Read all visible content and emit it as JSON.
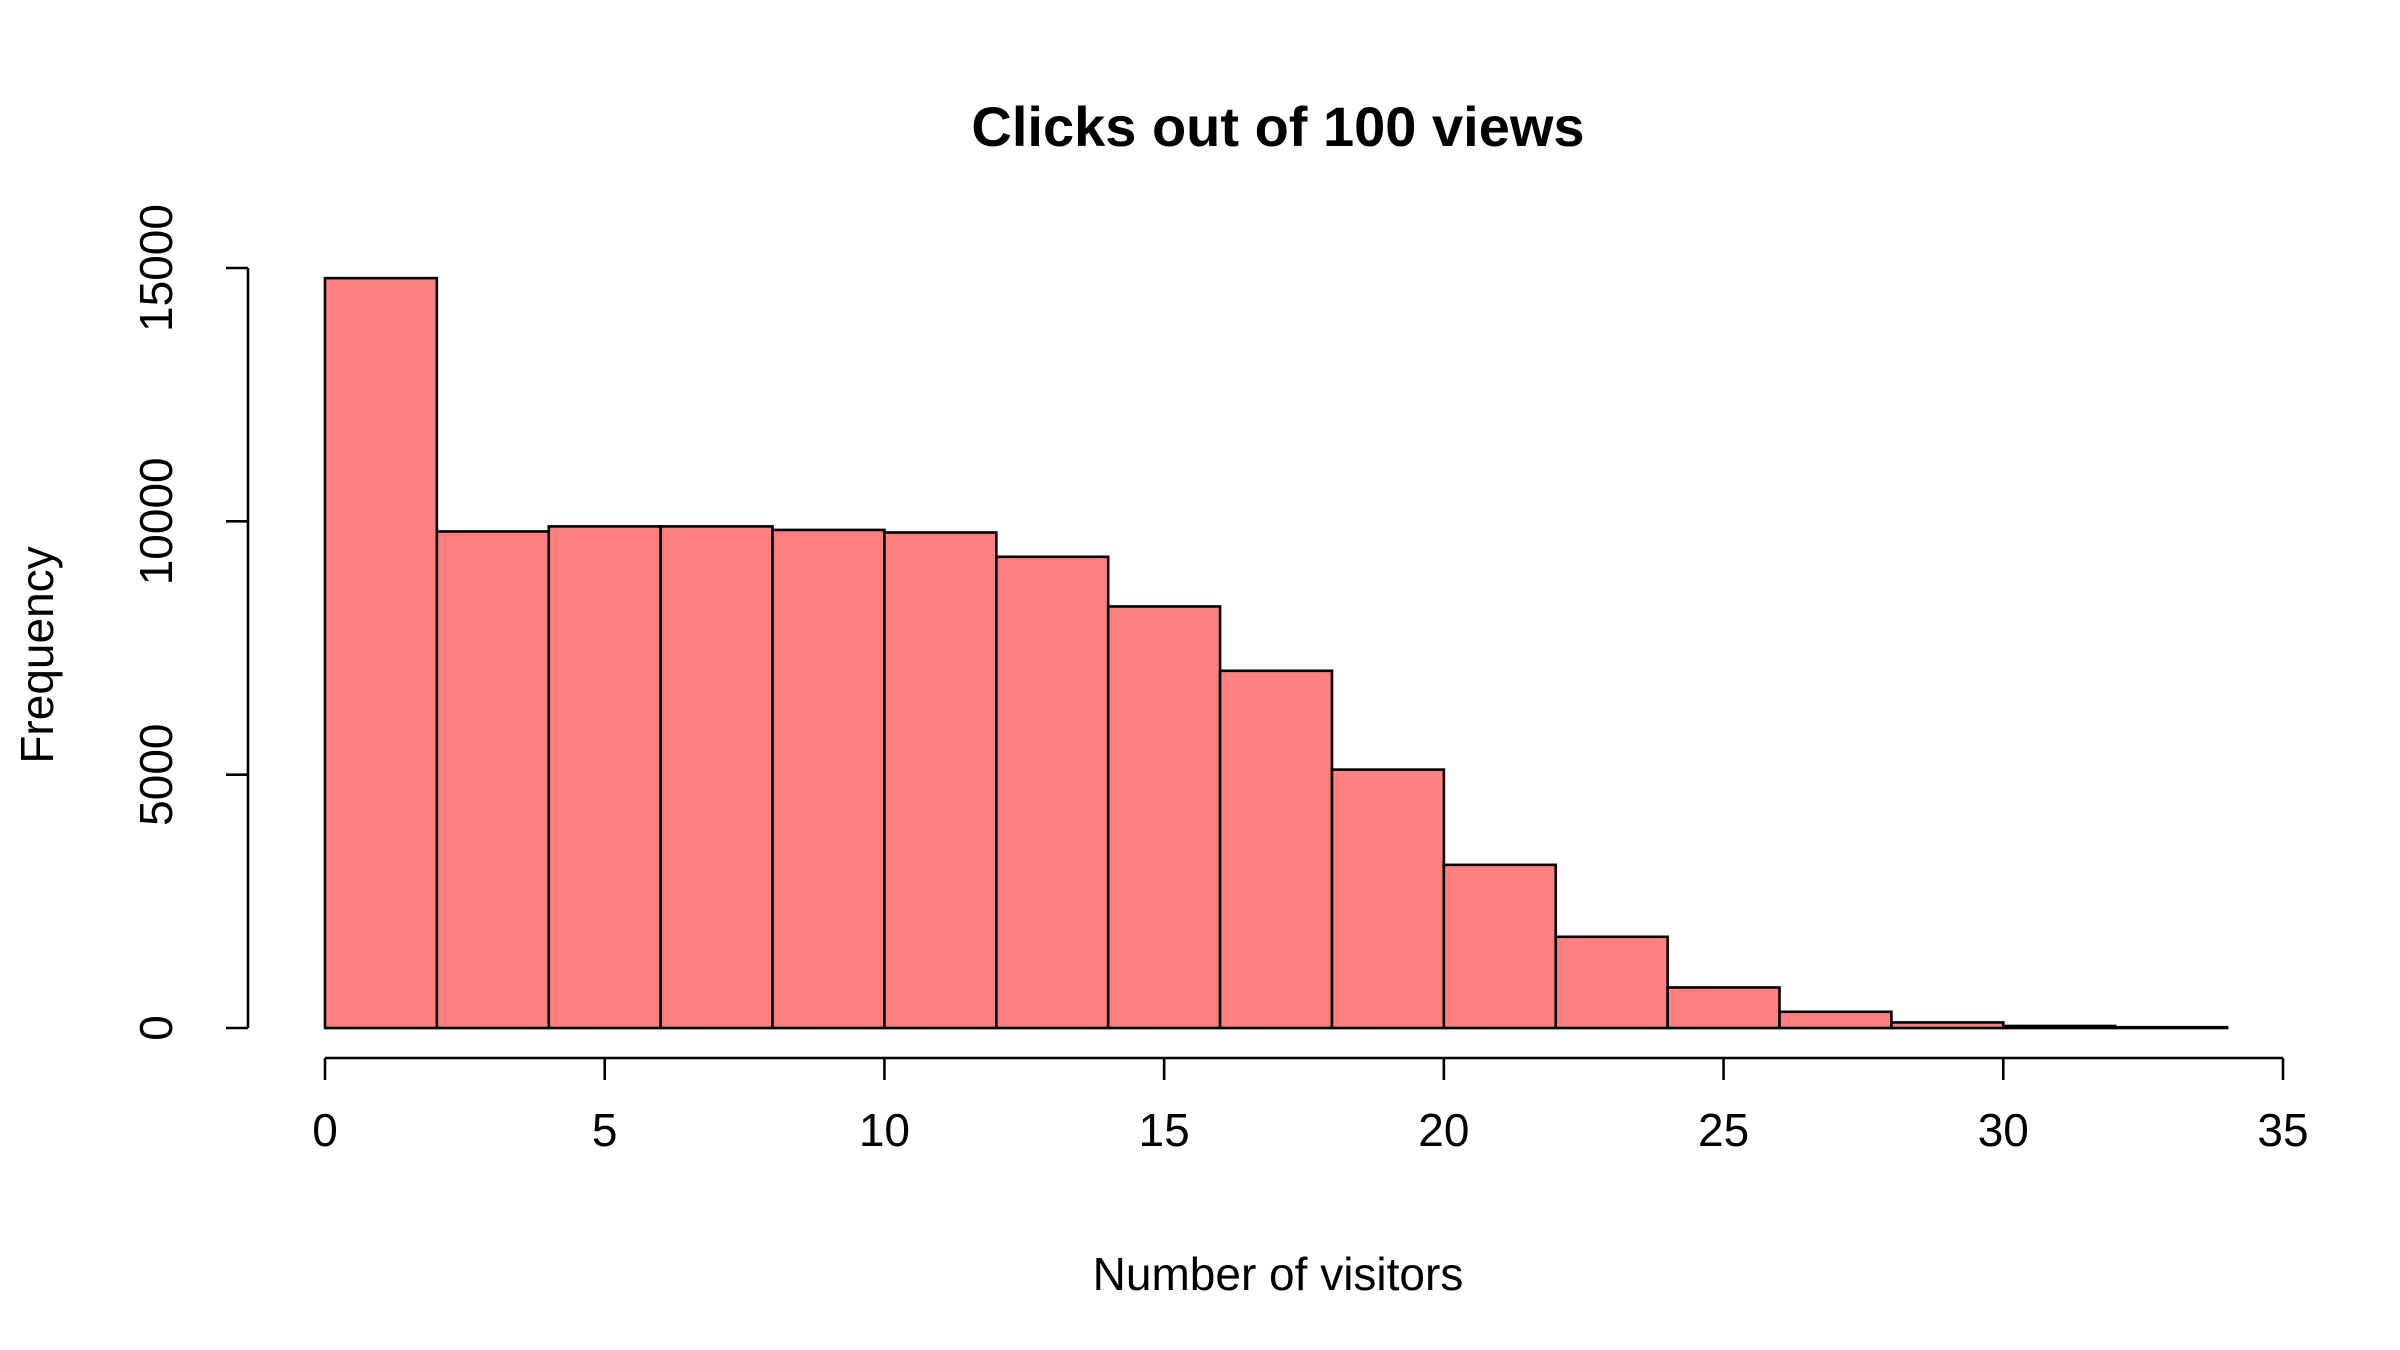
{
  "chart_data": {
    "type": "bar",
    "subtype": "histogram",
    "title": "Clicks out of 100 views",
    "xlabel": "Number of visitors",
    "ylabel": "Frequency",
    "bin_edges": [
      0,
      2,
      4,
      6,
      8,
      10,
      12,
      14,
      16,
      18,
      20,
      22,
      24,
      26,
      28,
      30,
      32,
      34
    ],
    "values": [
      14800,
      9800,
      9900,
      9900,
      9830,
      9780,
      9300,
      8320,
      7050,
      5100,
      3220,
      1800,
      800,
      320,
      110,
      40,
      15
    ],
    "xlim": [
      0,
      35
    ],
    "ylim": [
      0,
      15000
    ],
    "x_ticks": [
      0,
      5,
      10,
      15,
      20,
      25,
      30,
      35
    ],
    "x_tick_labels": [
      "0",
      "5",
      "10",
      "15",
      "20",
      "25",
      "30",
      "35"
    ],
    "y_ticks": [
      0,
      5000,
      10000,
      15000
    ],
    "y_tick_labels": [
      "0",
      "5000",
      "10000",
      "15000"
    ],
    "grid": false,
    "legend": "none",
    "bar_color": "#ff8080",
    "edge_color": "#000000"
  }
}
